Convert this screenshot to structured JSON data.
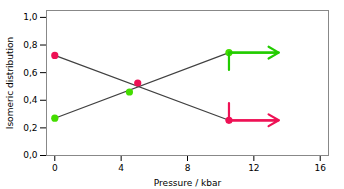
{
  "chart_data": {
    "type": "line",
    "xlabel": "Pressure / kbar",
    "ylabel": "Isomeric distribution",
    "xlim": [
      -0.5,
      16.5
    ],
    "ylim": [
      0,
      1.05
    ],
    "xticks": [
      0,
      4,
      8,
      12,
      16
    ],
    "yticks": [
      {
        "value": 0.0,
        "label": "0,0"
      },
      {
        "value": 0.2,
        "label": "0,2"
      },
      {
        "value": 0.4,
        "label": "0,4"
      },
      {
        "value": 0.6,
        "label": "0,6"
      },
      {
        "value": 0.8,
        "label": "0,8"
      },
      {
        "value": 1.0,
        "label": "1,0"
      }
    ],
    "grid": false,
    "series": [
      {
        "type": "line",
        "color": "#404040",
        "x": [
          0,
          10.5
        ],
        "values": [
          0.27,
          0.745
        ]
      },
      {
        "type": "line",
        "color": "#404040",
        "x": [
          0,
          10.5
        ],
        "values": [
          0.725,
          0.255
        ]
      },
      {
        "type": "scatter",
        "color": "#44dd00",
        "x": [
          0,
          4.5,
          10.5
        ],
        "values": [
          0.27,
          0.46,
          0.745
        ]
      },
      {
        "type": "scatter",
        "color": "#ee1155",
        "x": [
          0,
          5.0,
          10.5
        ],
        "values": [
          0.725,
          0.525,
          0.255
        ]
      }
    ],
    "arrows": [
      {
        "color": "#22cc00",
        "x": [
          10.5,
          10.5,
          13.5
        ],
        "y": [
          0.62,
          0.745,
          0.745
        ]
      },
      {
        "color": "#ee1155",
        "x": [
          10.5,
          10.5,
          13.5
        ],
        "y": [
          0.38,
          0.255,
          0.255
        ]
      }
    ]
  }
}
